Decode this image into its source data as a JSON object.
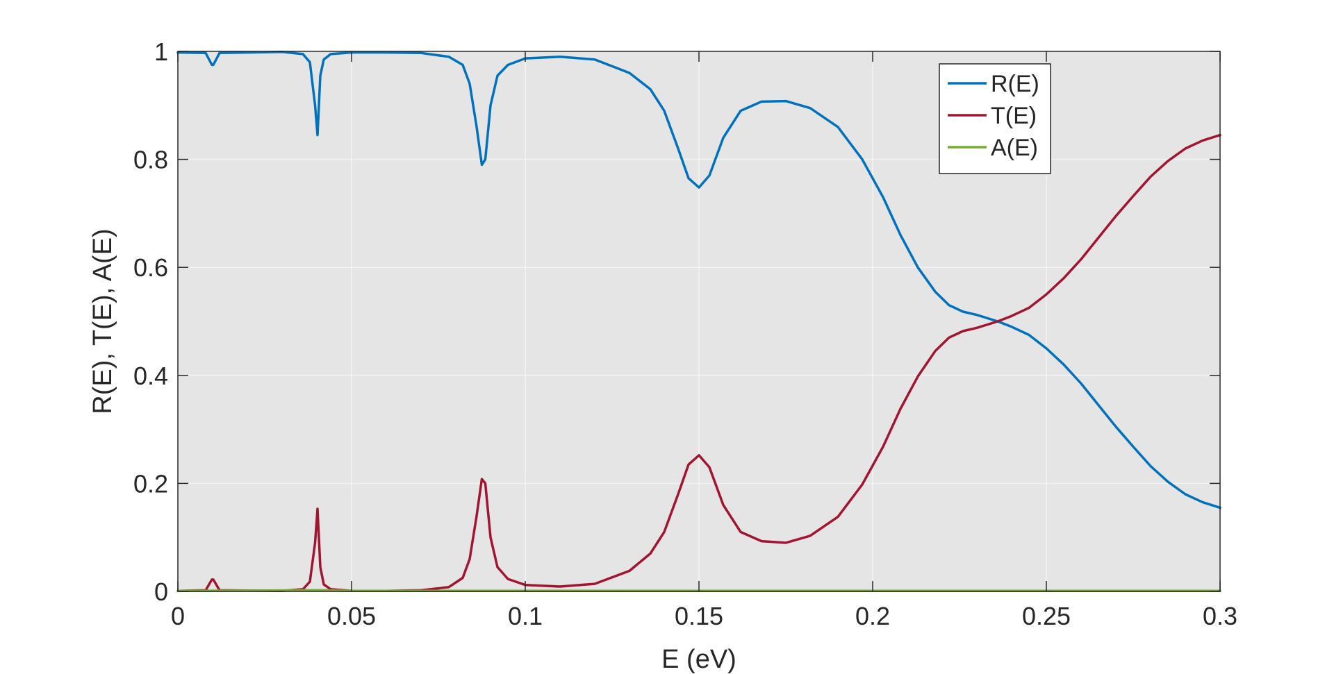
{
  "chart_data": {
    "type": "line",
    "title": "",
    "xlabel": "E (eV)",
    "ylabel": "R(E), T(E), A(E)",
    "xlim": [
      0,
      0.3
    ],
    "ylim": [
      0,
      1
    ],
    "xticks": [
      0,
      0.05,
      0.1,
      0.15,
      0.2,
      0.25,
      0.3
    ],
    "xtick_labels": [
      "0",
      "0.05",
      "0.1",
      "0.15",
      "0.2",
      "0.25",
      "0.3"
    ],
    "yticks": [
      0,
      0.2,
      0.4,
      0.6,
      0.8,
      1
    ],
    "ytick_labels": [
      "0",
      "0.2",
      "0.4",
      "0.6",
      "0.8",
      "1"
    ],
    "grid": true,
    "plot_background": "#e5e5e5",
    "legend_position": "top-right (inside)",
    "series": [
      {
        "name": "R(E)",
        "color": "#0072bd",
        "x": [
          0,
          0.008,
          0.0098,
          0.0102,
          0.012,
          0.03,
          0.036,
          0.038,
          0.0395,
          0.0402,
          0.041,
          0.042,
          0.044,
          0.05,
          0.06,
          0.07,
          0.078,
          0.082,
          0.084,
          0.086,
          0.0875,
          0.0885,
          0.09,
          0.092,
          0.095,
          0.1,
          0.11,
          0.12,
          0.13,
          0.136,
          0.14,
          0.144,
          0.147,
          0.15,
          0.153,
          0.157,
          0.162,
          0.168,
          0.175,
          0.182,
          0.19,
          0.197,
          0.203,
          0.208,
          0.213,
          0.218,
          0.222,
          0.226,
          0.23,
          0.236,
          0.24,
          0.245,
          0.25,
          0.255,
          0.26,
          0.265,
          0.27,
          0.275,
          0.28,
          0.285,
          0.29,
          0.295,
          0.3
        ],
        "y": [
          0.998,
          0.997,
          0.975,
          0.975,
          0.997,
          0.999,
          0.995,
          0.98,
          0.9,
          0.845,
          0.955,
          0.985,
          0.995,
          0.998,
          0.998,
          0.997,
          0.99,
          0.975,
          0.94,
          0.86,
          0.79,
          0.8,
          0.9,
          0.955,
          0.975,
          0.987,
          0.99,
          0.985,
          0.96,
          0.93,
          0.89,
          0.82,
          0.765,
          0.748,
          0.77,
          0.84,
          0.89,
          0.907,
          0.908,
          0.895,
          0.86,
          0.8,
          0.73,
          0.66,
          0.6,
          0.555,
          0.53,
          0.518,
          0.512,
          0.5,
          0.49,
          0.475,
          0.45,
          0.42,
          0.385,
          0.345,
          0.305,
          0.268,
          0.232,
          0.203,
          0.18,
          0.165,
          0.155
        ]
      },
      {
        "name": "T(E)",
        "color": "#a2142f",
        "x": [
          0,
          0.008,
          0.0098,
          0.0102,
          0.012,
          0.03,
          0.036,
          0.038,
          0.0395,
          0.0402,
          0.041,
          0.042,
          0.044,
          0.05,
          0.06,
          0.07,
          0.078,
          0.082,
          0.084,
          0.086,
          0.0875,
          0.0885,
          0.09,
          0.092,
          0.095,
          0.1,
          0.11,
          0.12,
          0.13,
          0.136,
          0.14,
          0.144,
          0.147,
          0.15,
          0.153,
          0.157,
          0.162,
          0.168,
          0.175,
          0.182,
          0.19,
          0.197,
          0.203,
          0.208,
          0.213,
          0.218,
          0.222,
          0.226,
          0.23,
          0.236,
          0.24,
          0.245,
          0.25,
          0.255,
          0.26,
          0.265,
          0.27,
          0.275,
          0.28,
          0.285,
          0.29,
          0.295,
          0.3
        ],
        "y": [
          0.001,
          0.002,
          0.022,
          0.022,
          0.002,
          0.001,
          0.004,
          0.018,
          0.09,
          0.153,
          0.045,
          0.013,
          0.004,
          0.001,
          0.001,
          0.002,
          0.008,
          0.025,
          0.06,
          0.14,
          0.208,
          0.2,
          0.1,
          0.045,
          0.023,
          0.012,
          0.009,
          0.014,
          0.038,
          0.07,
          0.11,
          0.18,
          0.235,
          0.252,
          0.23,
          0.16,
          0.11,
          0.093,
          0.09,
          0.103,
          0.138,
          0.198,
          0.268,
          0.338,
          0.398,
          0.445,
          0.47,
          0.482,
          0.488,
          0.5,
          0.51,
          0.525,
          0.55,
          0.58,
          0.615,
          0.655,
          0.695,
          0.732,
          0.768,
          0.797,
          0.82,
          0.835,
          0.845
        ]
      },
      {
        "name": "A(E)",
        "color": "#77ac30",
        "x": [
          0,
          0.0402,
          0.05,
          0.1,
          0.15,
          0.2,
          0.25,
          0.3
        ],
        "y": [
          0.001,
          0.002,
          0.001,
          0.001,
          0.001,
          0.001,
          0.001,
          0.001
        ]
      }
    ]
  }
}
